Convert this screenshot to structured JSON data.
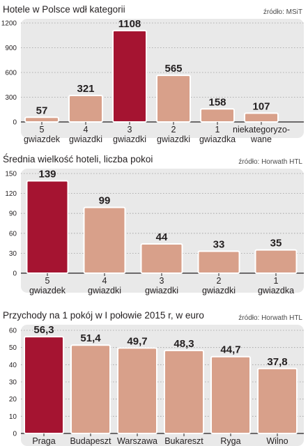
{
  "chart_data": [
    {
      "type": "bar",
      "title": "Hotele w Polsce wdł kategorii",
      "source": "źródło: MSiT",
      "categories": [
        [
          "5",
          "gwiazdek"
        ],
        [
          "4",
          "gwiazdki"
        ],
        [
          "3",
          "gwiazdki"
        ],
        [
          "2",
          "gwiazdki"
        ],
        [
          "1",
          "gwiazdka"
        ],
        [
          "niekategoryzo-",
          "wane"
        ]
      ],
      "values": [
        57,
        321,
        1108,
        565,
        158,
        107
      ],
      "value_labels": [
        "57",
        "321",
        "1108",
        "565",
        "158",
        "107"
      ],
      "highlight_index": 2,
      "ylim": [
        0,
        1200
      ],
      "yticks": [
        0,
        300,
        600,
        900,
        1200
      ],
      "grid": true,
      "xlabel": "",
      "ylabel": ""
    },
    {
      "type": "bar",
      "title": "Średnia wielkość hoteli, liczba pokoi",
      "source": "źródło: Horwath HTL",
      "categories": [
        [
          "5",
          "gwiazdek"
        ],
        [
          "4",
          "gwiazdki"
        ],
        [
          "3",
          "gwiazdki"
        ],
        [
          "2",
          "gwiazdki"
        ],
        [
          "1",
          "gwiazdka"
        ]
      ],
      "values": [
        139,
        99,
        44,
        33,
        35
      ],
      "value_labels": [
        "139",
        "99",
        "44",
        "33",
        "35"
      ],
      "highlight_index": 0,
      "ylim": [
        0,
        150
      ],
      "yticks": [
        0,
        30,
        60,
        90,
        120,
        150
      ],
      "grid": true,
      "xlabel": "",
      "ylabel": ""
    },
    {
      "type": "bar",
      "title": "Przychody na 1 pokój w I połowie 2015 r, w euro",
      "source": "źródło: Horwath HTL",
      "categories": [
        [
          "Praga"
        ],
        [
          "Budapeszt"
        ],
        [
          "Warszawa"
        ],
        [
          "Bukareszt"
        ],
        [
          "Ryga"
        ],
        [
          "Wilno"
        ]
      ],
      "values": [
        56.3,
        51.4,
        49.7,
        48.3,
        44.7,
        37.8
      ],
      "value_labels": [
        "56,3",
        "51,4",
        "49,7",
        "48,3",
        "44,7",
        "37,8"
      ],
      "highlight_index": 0,
      "ylim": [
        0,
        60
      ],
      "yticks": [
        0,
        10,
        20,
        30,
        40,
        50,
        60
      ],
      "grid": true,
      "xlabel": "",
      "ylabel": ""
    }
  ],
  "colors": {
    "background": "#ffffff",
    "panel": "#e9e9e9",
    "bar": "#d8a08a",
    "highlight": "#a51431",
    "text": "#231f20",
    "grid": "#9a9a9a",
    "source_text": "#4a4a4a"
  }
}
